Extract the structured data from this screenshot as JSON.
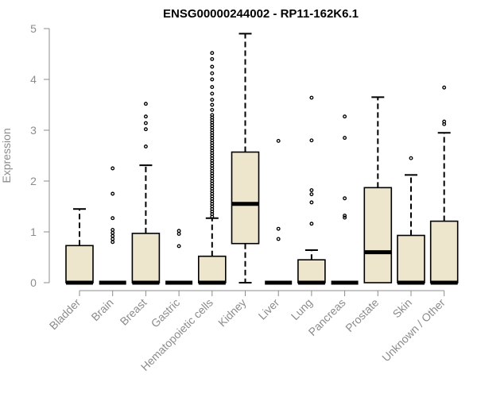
{
  "chart_data": {
    "type": "box",
    "title": "ENSG00000244002 - RP11-162K6.1",
    "xlabel": "",
    "ylabel": "Expression",
    "ylim": [
      0,
      5
    ],
    "yticks": [
      "0",
      "1",
      "2",
      "3",
      "4",
      "5"
    ],
    "grid": false,
    "legend": "none",
    "colors": {
      "box_fill": "#ede6cd",
      "stroke": "#000000",
      "axis_text": "#8c8c8c",
      "title": "#000000"
    },
    "categories": [
      "Bladder",
      "Brain",
      "Breast",
      "Gastric",
      "Hematopoietic cells",
      "Kidney",
      "Liver",
      "Lung",
      "Pancreas",
      "Prostate",
      "Skin",
      "Unknown / Other"
    ],
    "boxes": [
      {
        "category": "Bladder",
        "q1": 0,
        "median": 0,
        "q3": 0.73,
        "whisker_low": 0,
        "whisker_high": 1.45,
        "outliers": []
      },
      {
        "category": "Brain",
        "q1": 0,
        "median": 0,
        "q3": 0,
        "whisker_low": 0,
        "whisker_high": 0,
        "outliers": [
          0.8,
          0.86,
          0.92,
          0.98,
          1.04,
          1.27,
          1.75,
          2.25
        ]
      },
      {
        "category": "Breast",
        "q1": 0,
        "median": 0,
        "q3": 0.97,
        "whisker_low": 0,
        "whisker_high": 2.31,
        "outliers": [
          2.68,
          3.02,
          3.14,
          3.27,
          3.52
        ]
      },
      {
        "category": "Gastric",
        "q1": 0,
        "median": 0,
        "q3": 0,
        "whisker_low": 0,
        "whisker_high": 0,
        "outliers": [
          0.72,
          0.96,
          1.02
        ]
      },
      {
        "category": "Hematopoietic cells",
        "q1": 0,
        "median": 0,
        "q3": 0.52,
        "whisker_low": 0,
        "whisker_high": 1.27,
        "outliers": [
          1.3,
          1.35,
          1.4,
          1.45,
          1.5,
          1.55,
          1.6,
          1.65,
          1.7,
          1.75,
          1.8,
          1.85,
          1.9,
          1.95,
          2.0,
          2.05,
          2.1,
          2.15,
          2.2,
          2.25,
          2.3,
          2.35,
          2.4,
          2.45,
          2.5,
          2.55,
          2.6,
          2.65,
          2.7,
          2.75,
          2.8,
          2.85,
          2.9,
          2.95,
          3.0,
          3.05,
          3.1,
          3.15,
          3.2,
          3.25,
          3.3,
          3.4,
          3.5,
          3.6,
          3.72,
          3.85,
          4.0,
          4.12,
          4.25,
          4.4,
          4.52
        ]
      },
      {
        "category": "Kidney",
        "q1": 0.77,
        "median": 1.55,
        "q3": 2.57,
        "whisker_low": 0,
        "whisker_high": 4.9,
        "outliers": []
      },
      {
        "category": "Liver",
        "q1": 0,
        "median": 0,
        "q3": 0,
        "whisker_low": 0,
        "whisker_high": 0,
        "outliers": [
          0.86,
          1.06,
          2.79
        ]
      },
      {
        "category": "Lung",
        "q1": 0,
        "median": 0,
        "q3": 0.45,
        "whisker_low": 0,
        "whisker_high": 0.64,
        "outliers": [
          1.16,
          1.58,
          1.74,
          1.82,
          2.8,
          3.64
        ]
      },
      {
        "category": "Pancreas",
        "q1": 0,
        "median": 0,
        "q3": 0,
        "whisker_low": 0,
        "whisker_high": 0,
        "outliers": [
          1.28,
          1.32,
          1.66,
          2.85,
          3.27
        ]
      },
      {
        "category": "Prostate",
        "q1": 0,
        "median": 0.6,
        "q3": 1.87,
        "whisker_low": 0,
        "whisker_high": 3.65,
        "outliers": []
      },
      {
        "category": "Skin",
        "q1": 0,
        "median": 0,
        "q3": 0.93,
        "whisker_low": 0,
        "whisker_high": 2.12,
        "outliers": [
          2.45
        ]
      },
      {
        "category": "Unknown / Other",
        "q1": 0,
        "median": 0,
        "q3": 1.21,
        "whisker_low": 0,
        "whisker_high": 2.95,
        "outliers": [
          3.12,
          3.17,
          3.84
        ]
      }
    ]
  }
}
